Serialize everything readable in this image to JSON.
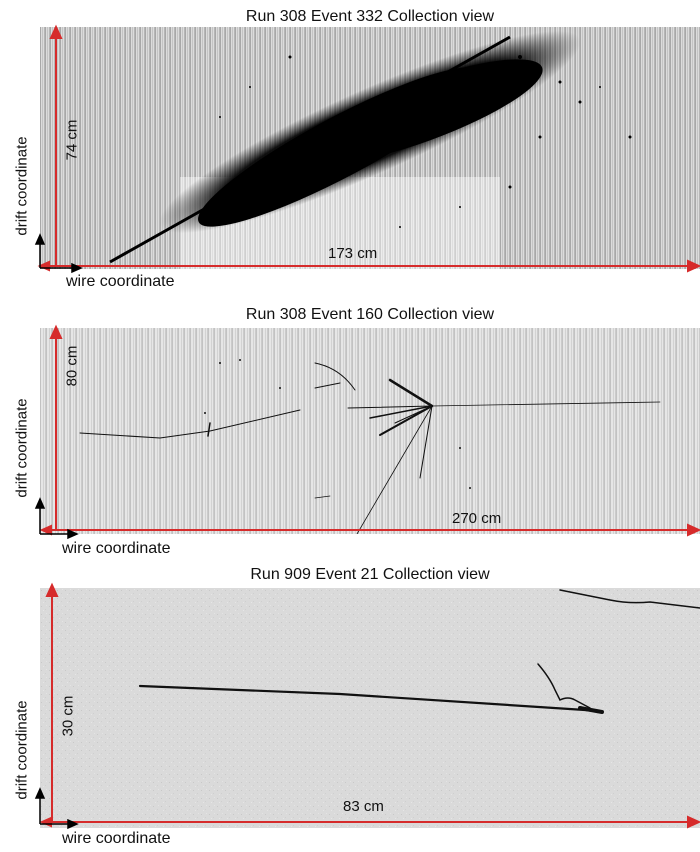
{
  "panels": [
    {
      "title": "Run 308 Event 332 Collection view",
      "vertical_dimension": "74 cm",
      "horizontal_dimension": "173 cm",
      "y_axis_label": "drift coordinate",
      "x_axis_label": "wire coordinate"
    },
    {
      "title": "Run 308 Event 160 Collection view",
      "vertical_dimension": "80 cm",
      "horizontal_dimension": "270 cm",
      "y_axis_label": "drift coordinate",
      "x_axis_label": "wire coordinate"
    },
    {
      "title": "Run 909 Event 21 Collection view",
      "vertical_dimension": "30 cm",
      "horizontal_dimension": "83 cm",
      "y_axis_label": "drift coordinate",
      "x_axis_label": "wire coordinate"
    }
  ],
  "colors": {
    "dimension_arrow": "#d62b2b",
    "axis_arrow": "#000000",
    "ink": "#111111",
    "background_light": "#e9e9e9",
    "background_panel3": "#d9d9d9"
  }
}
